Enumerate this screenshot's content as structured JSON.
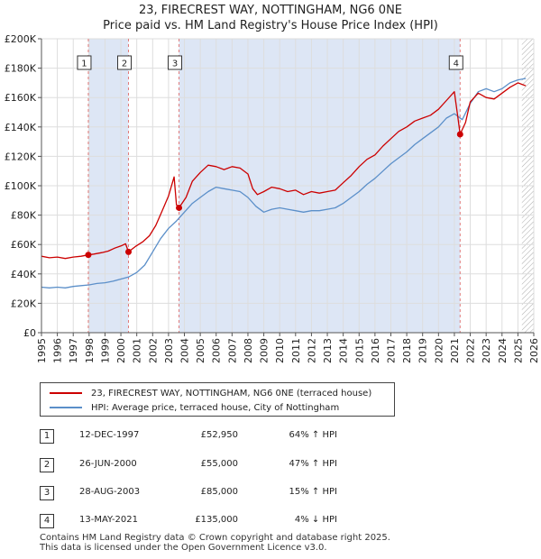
{
  "title": "23, FIRECREST WAY, NOTTINGHAM, NG6 0NE",
  "subtitle": "Price paid vs. HM Land Registry's House Price Index (HPI)",
  "colors": {
    "price": "#cc0000",
    "hpi": "#5b8fc9",
    "shade": "#dde6f5",
    "grid": "#dddddd",
    "vline": "#e07a7a"
  },
  "chart_data": {
    "type": "line",
    "xlim": [
      1995,
      2026
    ],
    "ylim": [
      0,
      200000
    ],
    "yticks": [
      0,
      20000,
      40000,
      60000,
      80000,
      100000,
      120000,
      140000,
      160000,
      180000,
      200000
    ],
    "ytick_labels": [
      "£0",
      "£20K",
      "£40K",
      "£60K",
      "£80K",
      "£100K",
      "£120K",
      "£140K",
      "£160K",
      "£180K",
      "£200K"
    ],
    "xticks": [
      1995,
      1996,
      1997,
      1998,
      1999,
      2000,
      2001,
      2002,
      2003,
      2004,
      2005,
      2006,
      2007,
      2008,
      2009,
      2010,
      2011,
      2012,
      2013,
      2014,
      2015,
      2016,
      2017,
      2018,
      2019,
      2020,
      2021,
      2022,
      2023,
      2024,
      2025,
      2026
    ],
    "future_hatch_from": 2025.25,
    "shaded_periods": [
      [
        1997.95,
        2000.48
      ],
      [
        2003.66,
        2021.36
      ]
    ],
    "series": [
      {
        "name": "23, FIRECREST WAY, NOTTINGHAM, NG6 0NE (terraced house)",
        "x": [
          1995,
          1995.5,
          1996,
          1996.5,
          1997,
          1997.5,
          1997.95,
          1998.3,
          1998.8,
          1999.2,
          1999.6,
          2000,
          2000.3,
          2000.48,
          2000.9,
          2001.4,
          2001.8,
          2002.2,
          2002.6,
          2003,
          2003.35,
          2003.5,
          2003.66,
          2004.1,
          2004.5,
          2005,
          2005.5,
          2006,
          2006.5,
          2007,
          2007.5,
          2008,
          2008.3,
          2008.6,
          2009,
          2009.5,
          2010,
          2010.5,
          2011,
          2011.5,
          2012,
          2012.5,
          2013,
          2013.5,
          2014,
          2014.5,
          2015,
          2015.5,
          2016,
          2016.5,
          2017,
          2017.5,
          2018,
          2018.5,
          2019,
          2019.5,
          2020,
          2020.5,
          2021,
          2021.2,
          2021.36,
          2021.7,
          2022,
          2022.5,
          2023,
          2023.5,
          2024,
          2024.5,
          2025,
          2025.5
        ],
        "y": [
          52000,
          51000,
          51500,
          50500,
          51500,
          52000,
          52950,
          53500,
          54500,
          55500,
          57500,
          59000,
          60500,
          55000,
          58500,
          62000,
          66000,
          73000,
          83000,
          93000,
          106000,
          87000,
          85000,
          92000,
          103000,
          109000,
          114000,
          113000,
          111000,
          113000,
          112000,
          108000,
          98000,
          94000,
          96000,
          99000,
          98000,
          96000,
          97000,
          94000,
          96000,
          95000,
          96000,
          97000,
          102000,
          107000,
          113000,
          118000,
          121000,
          127000,
          132000,
          137000,
          140000,
          144000,
          146000,
          148000,
          152000,
          158000,
          164000,
          148000,
          135000,
          143000,
          157000,
          163000,
          160000,
          159000,
          163000,
          167000,
          170000,
          168000
        ]
      },
      {
        "name": "HPI: Average price, terraced house, City of Nottingham",
        "x": [
          1995,
          1995.5,
          1996,
          1996.5,
          1997,
          1997.5,
          1998,
          1998.5,
          1999,
          1999.5,
          2000,
          2000.5,
          2001,
          2001.5,
          2002,
          2002.5,
          2003,
          2003.5,
          2004,
          2004.5,
          2005,
          2005.5,
          2006,
          2006.5,
          2007,
          2007.5,
          2008,
          2008.5,
          2009,
          2009.5,
          2010,
          2010.5,
          2011,
          2011.5,
          2012,
          2012.5,
          2013,
          2013.5,
          2014,
          2014.5,
          2015,
          2015.5,
          2016,
          2016.5,
          2017,
          2017.5,
          2018,
          2018.5,
          2019,
          2019.5,
          2020,
          2020.5,
          2021,
          2021.5,
          2022,
          2022.5,
          2023,
          2023.5,
          2024,
          2024.5,
          2025,
          2025.5
        ],
        "y": [
          31000,
          30500,
          31000,
          30500,
          31500,
          32000,
          32500,
          33500,
          34000,
          35000,
          36500,
          38000,
          41000,
          46000,
          55000,
          64000,
          71000,
          76000,
          82000,
          88000,
          92000,
          96000,
          99000,
          98000,
          97000,
          96000,
          92000,
          86000,
          82000,
          84000,
          85000,
          84000,
          83000,
          82000,
          83000,
          83000,
          84000,
          85000,
          88000,
          92000,
          96000,
          101000,
          105000,
          110000,
          115000,
          119000,
          123000,
          128000,
          132000,
          136000,
          140000,
          146000,
          149000,
          145000,
          156000,
          164000,
          166000,
          164000,
          166000,
          170000,
          172000,
          173000
        ]
      }
    ],
    "transactions": [
      {
        "label": "1",
        "x": 1997.95,
        "y": 52950
      },
      {
        "label": "2",
        "x": 2000.48,
        "y": 55000
      },
      {
        "label": "3",
        "x": 2003.66,
        "y": 85000
      },
      {
        "label": "4",
        "x": 2021.36,
        "y": 135000
      }
    ]
  },
  "legend": {
    "price_label": "23, FIRECREST WAY, NOTTINGHAM, NG6 0NE (terraced house)",
    "hpi_label": "HPI: Average price, terraced house, City of Nottingham"
  },
  "table": [
    {
      "num": "1",
      "date": "12-DEC-1997",
      "price": "£52,950",
      "hpi": "64% ↑ HPI"
    },
    {
      "num": "2",
      "date": "26-JUN-2000",
      "price": "£55,000",
      "hpi": "47% ↑ HPI"
    },
    {
      "num": "3",
      "date": "28-AUG-2003",
      "price": "£85,000",
      "hpi": "15% ↑ HPI"
    },
    {
      "num": "4",
      "date": "13-MAY-2021",
      "price": "£135,000",
      "hpi": "4% ↓ HPI"
    }
  ],
  "footer": {
    "line1": "Contains HM Land Registry data © Crown copyright and database right 2025.",
    "line2": "This data is licensed under the Open Government Licence v3.0."
  }
}
